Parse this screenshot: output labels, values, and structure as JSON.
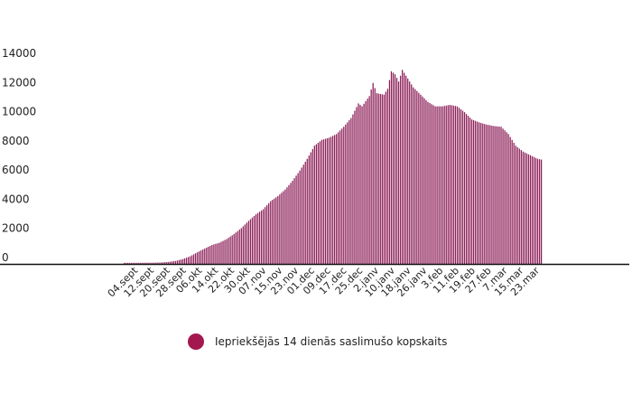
{
  "chart_data": {
    "type": "bar",
    "colors": {
      "bar": "#8c1d57",
      "baseline": "#111111",
      "legend_dot": "#a3184f"
    },
    "yticks": [
      0,
      2000,
      4000,
      6000,
      8000,
      10000,
      12000,
      14000
    ],
    "ylim": [
      0,
      14000
    ],
    "x_tick_labels": [
      "04.sept",
      "12.sept",
      "20.sept",
      "28.sept",
      "06.okt",
      "14.okt",
      "22.okt",
      "30.okt",
      "07.nov",
      "15.nov",
      "23.nov",
      "01.dec",
      "09.dec",
      "17.dec",
      "25.dec",
      "2.janv",
      "10.janv",
      "18.janv",
      "26.janv",
      "3.feb",
      "11.feb",
      "19.feb",
      "27.feb",
      "7.mar",
      "15.mar",
      "23.mar"
    ],
    "grid": false,
    "legend_position": "bottom",
    "series": [
      {
        "name": "Iepriekšējās 14 dienās saslimušo kopskaits",
        "anchors": [
          [
            0,
            70
          ],
          [
            8,
            75
          ],
          [
            16,
            80
          ],
          [
            20,
            95
          ],
          [
            24,
            130
          ],
          [
            28,
            200
          ],
          [
            32,
            330
          ],
          [
            36,
            520
          ],
          [
            40,
            800
          ],
          [
            44,
            1050
          ],
          [
            48,
            1300
          ],
          [
            52,
            1450
          ],
          [
            56,
            1700
          ],
          [
            60,
            2050
          ],
          [
            64,
            2450
          ],
          [
            68,
            2950
          ],
          [
            72,
            3400
          ],
          [
            76,
            3750
          ],
          [
            80,
            4300
          ],
          [
            84,
            4650
          ],
          [
            88,
            5100
          ],
          [
            92,
            5700
          ],
          [
            96,
            6400
          ],
          [
            100,
            7200
          ],
          [
            104,
            8100
          ],
          [
            108,
            8500
          ],
          [
            112,
            8650
          ],
          [
            116,
            8900
          ],
          [
            120,
            9400
          ],
          [
            124,
            10000
          ],
          [
            128,
            11000
          ],
          [
            130,
            10800
          ],
          [
            134,
            11500
          ],
          [
            136,
            12400
          ],
          [
            138,
            11700
          ],
          [
            142,
            11600
          ],
          [
            144,
            12000
          ],
          [
            146,
            13200
          ],
          [
            148,
            13000
          ],
          [
            150,
            12500
          ],
          [
            152,
            13300
          ],
          [
            154,
            12900
          ],
          [
            158,
            12100
          ],
          [
            162,
            11600
          ],
          [
            166,
            11100
          ],
          [
            170,
            10800
          ],
          [
            174,
            10800
          ],
          [
            178,
            10900
          ],
          [
            182,
            10800
          ],
          [
            186,
            10400
          ],
          [
            190,
            9900
          ],
          [
            194,
            9700
          ],
          [
            198,
            9550
          ],
          [
            202,
            9450
          ],
          [
            206,
            9400
          ],
          [
            210,
            8900
          ],
          [
            214,
            8100
          ],
          [
            218,
            7700
          ],
          [
            222,
            7450
          ],
          [
            226,
            7200
          ],
          [
            228,
            7150
          ]
        ]
      }
    ]
  }
}
